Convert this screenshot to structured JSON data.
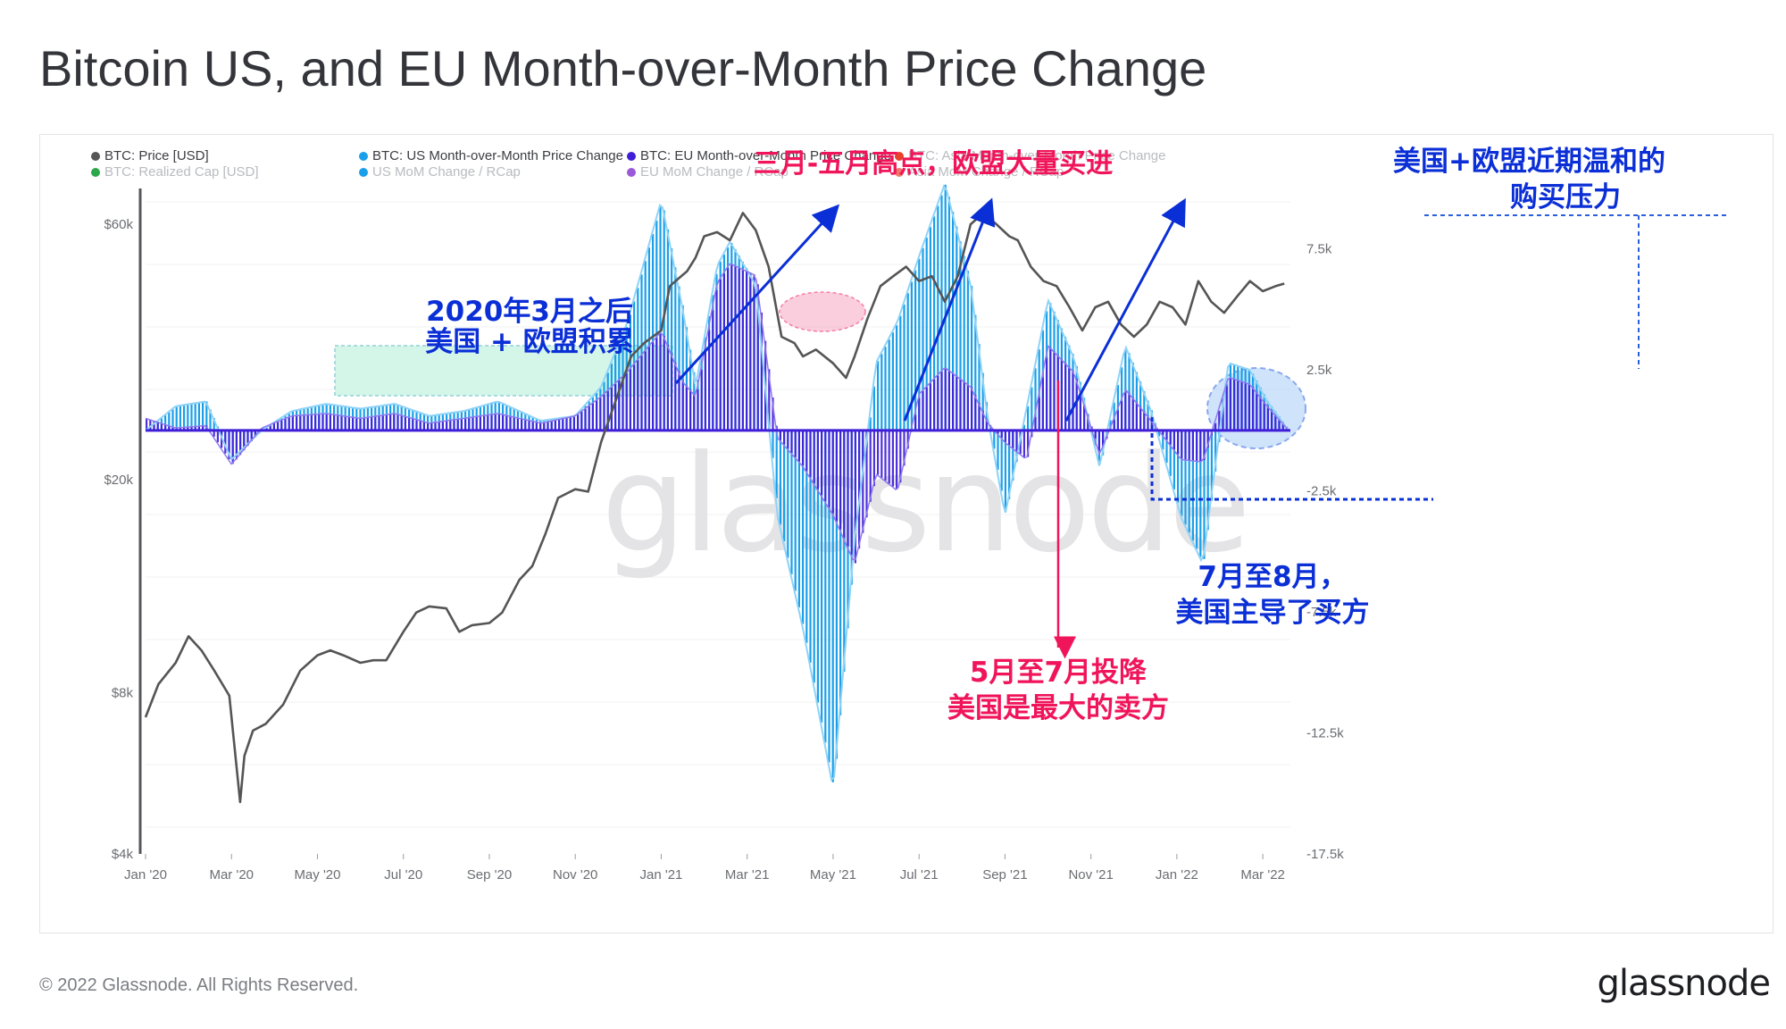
{
  "title": "Bitcoin US, and EU Month-over-Month Price Change",
  "footer": {
    "copyright": "© 2022 Glassnode. All Rights Reserved.",
    "logo": "glassnode"
  },
  "watermark": "glassnode",
  "colors": {
    "price": "#555555",
    "us": "#1a9fe8",
    "us_light": "#8ed3f7",
    "eu": "#3f1ed8",
    "eu_light": "#8f79f0",
    "asia": "#e8412c",
    "realized": "#2ba84a",
    "pink": "#f0145a",
    "blue_ann": "#0b2fd6",
    "mint": "#cdf5e6"
  },
  "chart_data": {
    "type": "line+bar",
    "legend": [
      {
        "label": "BTC: Price [USD]",
        "color": "#555555",
        "active": true
      },
      {
        "label": "BTC: US Month-over-Month Price Change",
        "color": "#1a9fe8",
        "active": true
      },
      {
        "label": "BTC: EU Month-over-Month Price Change",
        "color": "#3f1ed8",
        "active": true
      },
      {
        "label": "BTC: Asia Month-over-Month Price Change",
        "color": "#e8412c",
        "active": false
      },
      {
        "label": "BTC: Realized Cap [USD]",
        "color": "#2ba84a",
        "active": false
      },
      {
        "label": "US MoM Change / RCap",
        "color": "#1a9fe8",
        "active": false
      },
      {
        "label": "EU MoM Change / RCap",
        "color": "#9b59d9",
        "active": false
      },
      {
        "label": "Asia MoM Change / RCap",
        "color": "#f07a6a",
        "active": false
      }
    ],
    "x_ticks": [
      "Jan '20",
      "Mar '20",
      "May '20",
      "Jul '20",
      "Sep '20",
      "Nov '20",
      "Jan '21",
      "Mar '21",
      "May '21",
      "Jul '21",
      "Sep '21",
      "Nov '21",
      "Jan '22",
      "Mar '22"
    ],
    "x_range_months": [
      0,
      26.6
    ],
    "left_axis": {
      "scale": "log",
      "ticks": [
        "$4k",
        "$8k",
        "$20k",
        "$60k"
      ],
      "tick_values": [
        4000,
        8000,
        20000,
        60000
      ],
      "range": [
        4000,
        70000
      ]
    },
    "right_axis": {
      "ticks": [
        "7.5k",
        "2.5k",
        "-2.5k",
        "-7.5k",
        "-12.5k",
        "-17.5k"
      ],
      "tick_values": [
        7500,
        2500,
        -2500,
        -7500,
        -12500,
        -17500
      ],
      "range": [
        -17500,
        10000
      ]
    },
    "price_series": {
      "name": "BTC: Price [USD]",
      "x_months": [
        0,
        0.3,
        0.7,
        1.0,
        1.3,
        1.6,
        1.95,
        2.2,
        2.3,
        2.5,
        2.8,
        3.2,
        3.6,
        4.0,
        4.3,
        4.6,
        5.0,
        5.3,
        5.6,
        6.0,
        6.3,
        6.6,
        7.0,
        7.3,
        7.6,
        8.0,
        8.3,
        8.7,
        9.0,
        9.3,
        9.6,
        10.0,
        10.3,
        10.6,
        11.0,
        11.3,
        11.6,
        12.0,
        12.2,
        12.4,
        12.6,
        12.8,
        13.0,
        13.3,
        13.6,
        13.9,
        14.2,
        14.5,
        14.8,
        15.1,
        15.3,
        15.6,
        16.0,
        16.3,
        16.5,
        16.8,
        17.1,
        17.4,
        17.7,
        18.0,
        18.3,
        18.6,
        18.9,
        19.2,
        19.5,
        19.8,
        20.1,
        20.3,
        20.6,
        20.9,
        21.2,
        21.5,
        21.8,
        22.1,
        22.4,
        22.7,
        23.0,
        23.3,
        23.6,
        23.9,
        24.2,
        24.5,
        24.8,
        25.1,
        25.4,
        25.7,
        26.0,
        26.3,
        26.5
      ],
      "values": [
        7200,
        8300,
        9100,
        10200,
        9600,
        8800,
        7900,
        5000,
        6100,
        6800,
        7000,
        7600,
        8800,
        9400,
        9600,
        9400,
        9100,
        9200,
        9200,
        10400,
        11300,
        11600,
        11500,
        10400,
        10700,
        10800,
        11300,
        13000,
        13800,
        15800,
        18500,
        19200,
        19000,
        23500,
        29000,
        34000,
        36000,
        38000,
        46000,
        47500,
        49000,
        52000,
        57000,
        58000,
        56000,
        63000,
        58500,
        50000,
        37000,
        36000,
        34000,
        35000,
        33000,
        31000,
        34000,
        40000,
        46000,
        48000,
        50000,
        47000,
        48000,
        43000,
        48000,
        60000,
        63000,
        60000,
        57000,
        56000,
        50000,
        47000,
        46000,
        42000,
        38000,
        42000,
        43000,
        39000,
        37000,
        39000,
        43000,
        42000,
        39000,
        47000,
        43000,
        41000,
        44000,
        47000,
        45000,
        46000,
        46500
      ]
    },
    "us_series": {
      "name": "BTC: US Month-over-Month Price Change",
      "x_months": [
        0,
        0.7,
        1.4,
        2.0,
        2.7,
        3.4,
        4.2,
        5.0,
        5.8,
        6.6,
        7.4,
        8.2,
        9.2,
        10.0,
        10.6,
        11.2,
        12.0,
        12.5,
        12.8,
        13.3,
        13.6,
        14.2,
        14.7,
        15.3,
        16.0,
        16.5,
        17.0,
        17.5,
        18.0,
        18.6,
        19.2,
        19.6,
        20.0,
        20.5,
        21.0,
        21.6,
        22.2,
        22.8,
        23.4,
        24.1,
        24.6,
        25.2,
        25.7,
        26.1,
        26.6
      ],
      "values": [
        0,
        1000,
        1200,
        -1200,
        0,
        800,
        1100,
        900,
        1100,
        600,
        800,
        1200,
        400,
        600,
        1800,
        4400,
        9500,
        5000,
        1800,
        6800,
        7800,
        6000,
        -3500,
        -8200,
        -14800,
        -4500,
        2800,
        4500,
        7200,
        10200,
        6000,
        500,
        -3500,
        900,
        5400,
        3000,
        -1500,
        3500,
        800,
        -3600,
        -5500,
        2800,
        2500,
        1200,
        0
      ],
      "note": "Dark-blue bars drawn beneath EU bars; only the visible light-blue tips show."
    },
    "eu_series": {
      "name": "BTC: EU Month-over-Month Price Change",
      "x_months": [
        0,
        0.7,
        1.4,
        2.0,
        2.7,
        3.4,
        4.2,
        5.0,
        5.8,
        6.6,
        7.4,
        8.2,
        9.2,
        10.0,
        10.6,
        11.2,
        12.0,
        12.5,
        12.8,
        13.3,
        13.6,
        14.2,
        14.7,
        15.3,
        16.0,
        16.5,
        17.0,
        17.5,
        18.0,
        18.6,
        19.2,
        19.6,
        20.0,
        20.5,
        21.0,
        21.6,
        22.2,
        22.8,
        23.4,
        24.1,
        24.6,
        25.2,
        25.7,
        26.1,
        26.6
      ],
      "values": [
        500,
        100,
        200,
        -1400,
        100,
        600,
        700,
        500,
        700,
        300,
        500,
        700,
        300,
        600,
        1400,
        2400,
        4100,
        2000,
        1400,
        6100,
        6900,
        6400,
        -300,
        -1500,
        -3500,
        -5500,
        -1800,
        -2500,
        1500,
        2600,
        1800,
        300,
        -500,
        -1200,
        3500,
        2400,
        -1000,
        1700,
        400,
        -1200,
        -1300,
        2200,
        1900,
        1000,
        0
      ]
    },
    "annotations": [
      {
        "text": "三月-五月高点，欧盟大量买进",
        "color": "pink"
      },
      {
        "text": "2020年3月之后",
        "color": "blue"
      },
      {
        "text": "美国 + 欧盟积累",
        "color": "blue"
      },
      {
        "text": "美国+欧盟近期温和的",
        "color": "blue"
      },
      {
        "text": "购买压力",
        "color": "blue"
      },
      {
        "text": "7月至8月，",
        "color": "blue"
      },
      {
        "text": "美国主导了买方",
        "color": "blue"
      },
      {
        "text": "5月至7月投降",
        "color": "pink"
      },
      {
        "text": "美国是最大的卖方",
        "color": "pink"
      }
    ]
  }
}
